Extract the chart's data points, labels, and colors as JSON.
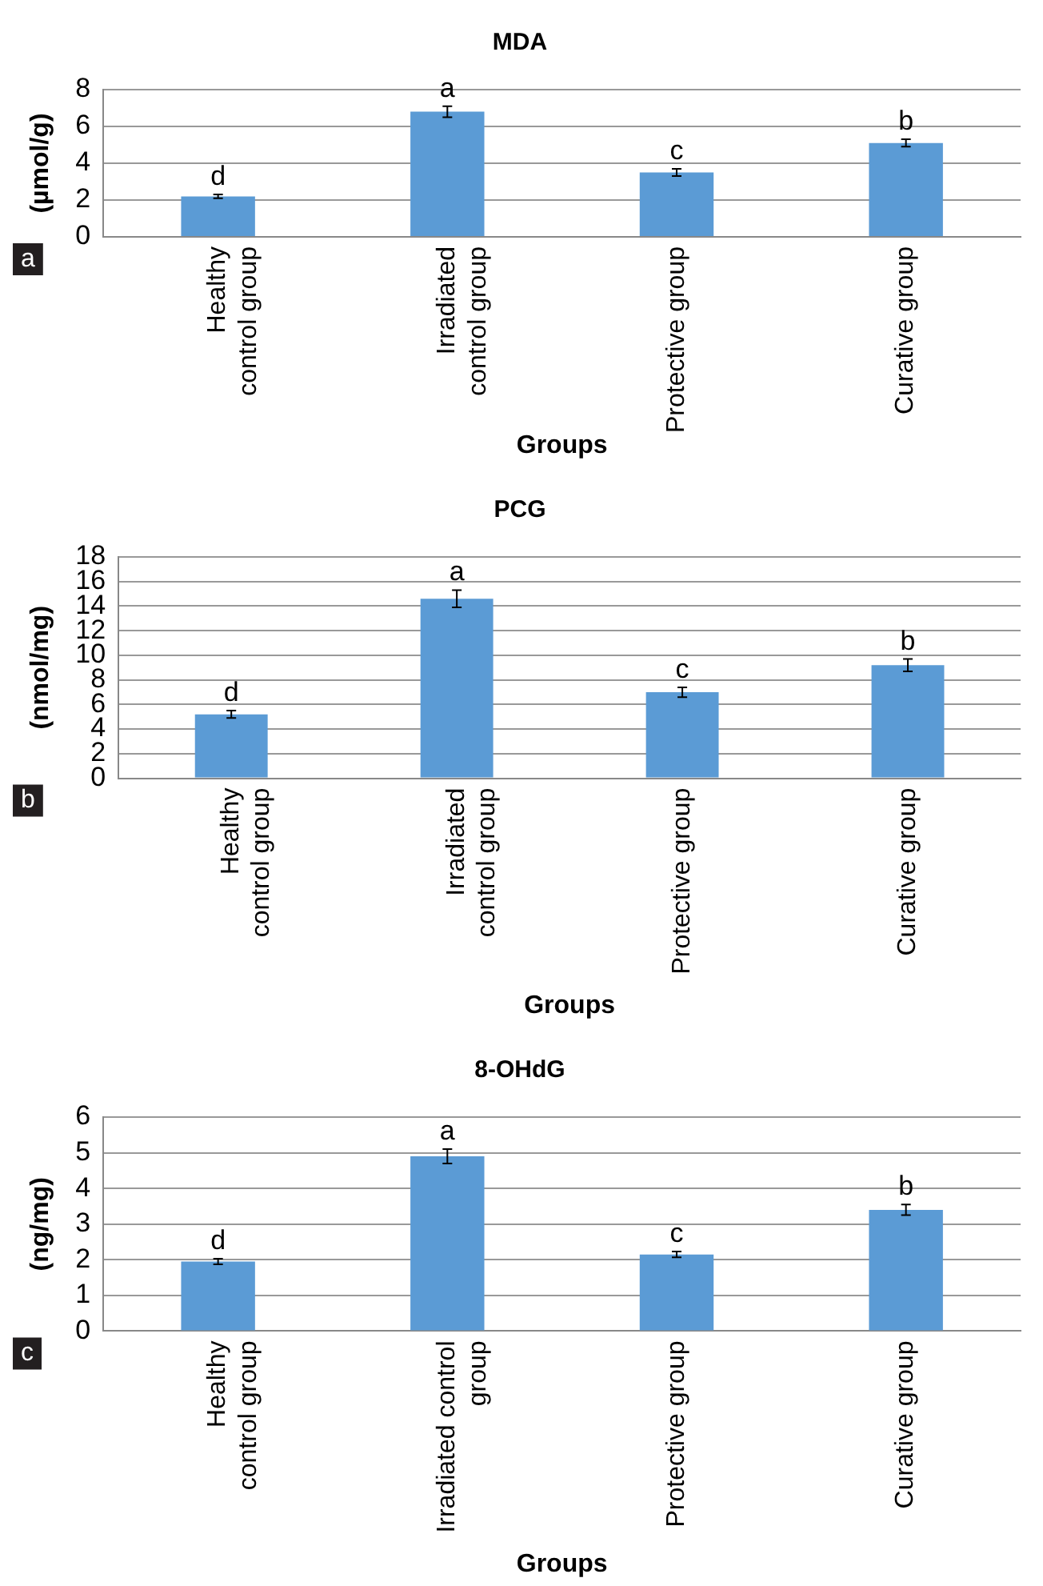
{
  "chart_data": [
    {
      "type": "bar",
      "title": "MDA",
      "xlabel": "Groups",
      "ylabel": "(µmol/g)",
      "categories": [
        "Healthy\ncontrol group",
        "Irradiated\ncontrol group",
        "Protective group",
        "Curative group"
      ],
      "values": [
        2.2,
        6.8,
        3.5,
        5.1
      ],
      "errors": [
        0.1,
        0.3,
        0.2,
        0.2
      ],
      "color": "#5b9bd5",
      "ylim": [
        0,
        8
      ],
      "yticks": [
        0,
        2,
        4,
        6,
        8
      ],
      "grid": "y",
      "legend": false,
      "annotations": [
        "a",
        {
          "text": "d",
          "x": "Healthy\ncontrol group",
          "y": 2.2
        },
        {
          "text": "a",
          "x": "Irradiated\ncontrol group",
          "y": 6.8
        },
        {
          "text": "c",
          "x": "Protective group",
          "y": 3.5
        },
        {
          "text": "b",
          "x": "Curative group",
          "y": 5.1
        }
      ]
    },
    {
      "type": "bar",
      "title": "PCG",
      "xlabel": "Groups",
      "ylabel": "(nmol/mg)",
      "categories": [
        "Healthy\ncontrol group",
        "Irradiated\ncontrol group",
        "Protective group",
        "Curative group"
      ],
      "values": [
        5.2,
        14.6,
        7.0,
        9.2
      ],
      "errors": [
        0.3,
        0.7,
        0.4,
        0.5
      ],
      "color": "#5b9bd5",
      "ylim": [
        0,
        18
      ],
      "yticks": [
        0,
        2,
        4,
        6,
        8,
        10,
        12,
        14,
        16,
        18
      ],
      "grid": "y",
      "legend": false,
      "annotations": [
        "b",
        {
          "text": "d",
          "x": "Healthy\ncontrol group",
          "y": 5.2
        },
        {
          "text": "a",
          "x": "Irradiated\ncontrol group",
          "y": 14.6
        },
        {
          "text": "c",
          "x": "Protective group",
          "y": 7.0
        },
        {
          "text": "b",
          "x": "Curative group",
          "y": 9.2
        }
      ]
    },
    {
      "type": "bar",
      "title": "8-OHdG",
      "xlabel": "Groups",
      "ylabel": "(ng/mg)",
      "categories": [
        "Healthy\ncontrol group",
        "Irradiated control\ngroup",
        "Protective group",
        "Curative group"
      ],
      "values": [
        1.95,
        4.9,
        2.15,
        3.4
      ],
      "errors": [
        0.08,
        0.2,
        0.08,
        0.15
      ],
      "color": "#5b9bd5",
      "ylim": [
        0,
        6
      ],
      "yticks": [
        0,
        1,
        2,
        3,
        4,
        5,
        6
      ],
      "grid": "y",
      "legend": false,
      "annotations": [
        "c",
        {
          "text": "d",
          "x": "Healthy\ncontrol group",
          "y": 1.95
        },
        {
          "text": "a",
          "x": "Irradiated control\ngroup",
          "y": 4.9
        },
        {
          "text": "c",
          "x": "Protective group",
          "y": 2.15
        },
        {
          "text": "b",
          "x": "Curative group",
          "y": 3.4
        }
      ]
    }
  ]
}
